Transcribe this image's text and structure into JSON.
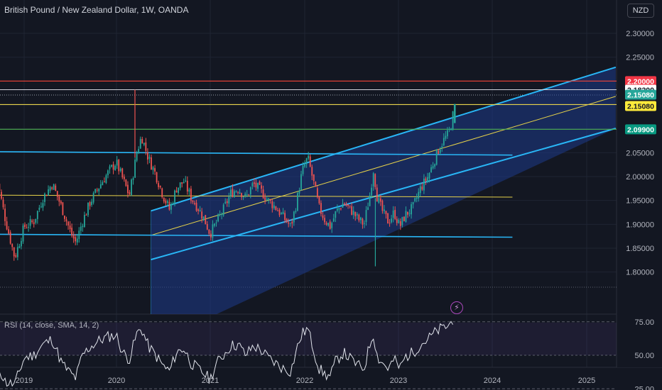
{
  "header": {
    "title": "British Pound / New Zealand Dollar, 1W, OANDA",
    "currency": "NZD"
  },
  "rsi": {
    "label": "RSI (14, close, SMA, 14, 2)",
    "ticks": [
      "75.00",
      "50.00",
      "25.00"
    ]
  },
  "colors": {
    "background": "#131722",
    "up": "#26a69a",
    "down": "#ef5350",
    "channel_line": "#29b6f6",
    "channel_fill": "#1e3a8a",
    "mid_line": "#e6d24a",
    "resistance": "#f44336",
    "green_level": "#4caf50",
    "rsi_line": "#e0e3eb"
  },
  "chart_data": {
    "type": "candlestick",
    "title": "British Pound / New Zealand Dollar, 1W, OANDA",
    "ylim": [
      1.78,
      2.32
    ],
    "y_ticks": [
      "2.30000",
      "2.25000",
      "2.20000",
      "2.15000",
      "2.10000",
      "2.05000",
      "2.00000",
      "1.95000",
      "1.90000",
      "1.85000",
      "1.80000"
    ],
    "x_ticks": [
      "2019",
      "2020",
      "2021",
      "2022",
      "2023",
      "2024",
      "2025"
    ],
    "horizontal_levels": [
      {
        "price": 2.2,
        "label": "2.20000",
        "style": "red"
      },
      {
        "price": 2.182,
        "label": "2.18200",
        "style": "white"
      },
      {
        "price": 2.1508,
        "label": "2.15080",
        "style": "yellow"
      },
      {
        "price": 2.099,
        "label": "2.09900",
        "style": "green"
      }
    ],
    "current_price_label": "2.15080",
    "range_lines": [
      {
        "from": [
          2018.7,
          2.052
        ],
        "to": [
          2024.2,
          2.045
        ]
      },
      {
        "from": [
          2018.7,
          1.961
        ],
        "to": [
          2024.2,
          1.957
        ]
      },
      {
        "from": [
          2018.7,
          1.879
        ],
        "to": [
          2024.2,
          1.873
        ]
      }
    ],
    "channel": {
      "x_start": 2020.35,
      "x_end": 2025.3,
      "upper": [
        1.928,
        2.229
      ],
      "middle": [
        1.877,
        2.168
      ],
      "lower": [
        1.826,
        2.101
      ]
    },
    "price_series": [
      [
        2018.7,
        2.005
      ],
      [
        2018.8,
        1.91
      ],
      [
        2018.9,
        1.83
      ],
      [
        2019.0,
        1.895
      ],
      [
        2019.1,
        1.905
      ],
      [
        2019.2,
        1.955
      ],
      [
        2019.3,
        1.985
      ],
      [
        2019.4,
        1.935
      ],
      [
        2019.5,
        1.88
      ],
      [
        2019.55,
        1.862
      ],
      [
        2019.62,
        1.905
      ],
      [
        2019.7,
        1.945
      ],
      [
        2019.8,
        1.98
      ],
      [
        2019.9,
        2.01
      ],
      [
        2019.98,
        2.03
      ],
      [
        2020.05,
        1.995
      ],
      [
        2020.12,
        1.96
      ],
      [
        2020.2,
        2.05
      ],
      [
        2020.25,
        2.085
      ],
      [
        2020.32,
        2.04
      ],
      [
        2020.4,
        2.005
      ],
      [
        2020.48,
        1.96
      ],
      [
        2020.55,
        1.93
      ],
      [
        2020.62,
        1.975
      ],
      [
        2020.7,
        1.99
      ],
      [
        2020.78,
        1.955
      ],
      [
        2020.85,
        1.935
      ],
      [
        2020.92,
        1.91
      ],
      [
        2020.98,
        1.88
      ],
      [
        2021.05,
        1.905
      ],
      [
        2021.12,
        1.93
      ],
      [
        2021.2,
        1.965
      ],
      [
        2021.28,
        1.975
      ],
      [
        2021.36,
        1.955
      ],
      [
        2021.44,
        1.985
      ],
      [
        2021.52,
        1.97
      ],
      [
        2021.6,
        1.95
      ],
      [
        2021.68,
        1.935
      ],
      [
        2021.76,
        1.915
      ],
      [
        2021.84,
        1.895
      ],
      [
        2021.9,
        1.945
      ],
      [
        2021.96,
        2.01
      ],
      [
        2022.02,
        2.04
      ],
      [
        2022.08,
        1.99
      ],
      [
        2022.14,
        1.935
      ],
      [
        2022.2,
        1.91
      ],
      [
        2022.26,
        1.895
      ],
      [
        2022.32,
        1.925
      ],
      [
        2022.4,
        1.945
      ],
      [
        2022.48,
        1.93
      ],
      [
        2022.56,
        1.91
      ],
      [
        2022.62,
        1.9
      ],
      [
        2022.68,
        1.96
      ],
      [
        2022.72,
        2.015
      ],
      [
        2022.76,
        1.955
      ],
      [
        2022.82,
        1.925
      ],
      [
        2022.88,
        1.905
      ],
      [
        2022.94,
        1.925
      ],
      [
        2023.0,
        1.895
      ],
      [
        2023.06,
        1.92
      ],
      [
        2023.14,
        1.935
      ],
      [
        2023.22,
        1.975
      ],
      [
        2023.3,
        2.0
      ],
      [
        2023.36,
        2.03
      ],
      [
        2023.42,
        2.06
      ],
      [
        2023.48,
        2.08
      ],
      [
        2023.52,
        2.09
      ],
      [
        2023.56,
        2.12
      ],
      [
        2023.58,
        2.15
      ]
    ],
    "wicks": [
      {
        "x": 2020.18,
        "high": 2.182,
        "low": 2.04
      },
      {
        "x": 2022.74,
        "high": 1.955,
        "low": 1.812
      }
    ],
    "rsi_series": [
      [
        2018.7,
        45
      ],
      [
        2018.8,
        30
      ],
      [
        2018.9,
        28
      ],
      [
        2019.0,
        48
      ],
      [
        2019.1,
        50
      ],
      [
        2019.2,
        58
      ],
      [
        2019.3,
        62
      ],
      [
        2019.4,
        44
      ],
      [
        2019.5,
        36
      ],
      [
        2019.55,
        33
      ],
      [
        2019.62,
        50
      ],
      [
        2019.7,
        56
      ],
      [
        2019.8,
        61
      ],
      [
        2019.9,
        64
      ],
      [
        2019.98,
        65
      ],
      [
        2020.05,
        52
      ],
      [
        2020.12,
        47
      ],
      [
        2020.2,
        66
      ],
      [
        2020.25,
        70
      ],
      [
        2020.32,
        57
      ],
      [
        2020.4,
        50
      ],
      [
        2020.48,
        42
      ],
      [
        2020.55,
        38
      ],
      [
        2020.62,
        52
      ],
      [
        2020.7,
        55
      ],
      [
        2020.78,
        44
      ],
      [
        2020.85,
        40
      ],
      [
        2020.92,
        36
      ],
      [
        2020.98,
        32
      ],
      [
        2021.05,
        44
      ],
      [
        2021.12,
        50
      ],
      [
        2021.2,
        57
      ],
      [
        2021.28,
        58
      ],
      [
        2021.36,
        50
      ],
      [
        2021.44,
        57
      ],
      [
        2021.52,
        54
      ],
      [
        2021.6,
        48
      ],
      [
        2021.68,
        44
      ],
      [
        2021.76,
        40
      ],
      [
        2021.84,
        38
      ],
      [
        2021.9,
        54
      ],
      [
        2021.96,
        66
      ],
      [
        2022.02,
        70
      ],
      [
        2022.08,
        55
      ],
      [
        2022.14,
        40
      ],
      [
        2022.2,
        36
      ],
      [
        2022.26,
        34
      ],
      [
        2022.32,
        46
      ],
      [
        2022.4,
        52
      ],
      [
        2022.48,
        47
      ],
      [
        2022.56,
        42
      ],
      [
        2022.62,
        40
      ],
      [
        2022.68,
        58
      ],
      [
        2022.72,
        66
      ],
      [
        2022.76,
        49
      ],
      [
        2022.82,
        44
      ],
      [
        2022.88,
        40
      ],
      [
        2022.94,
        47
      ],
      [
        2023.0,
        40
      ],
      [
        2023.06,
        49
      ],
      [
        2023.14,
        52
      ],
      [
        2023.22,
        58
      ],
      [
        2023.3,
        62
      ],
      [
        2023.36,
        66
      ],
      [
        2023.42,
        69
      ],
      [
        2023.48,
        71
      ],
      [
        2023.52,
        72
      ],
      [
        2023.56,
        76
      ],
      [
        2023.58,
        80
      ]
    ]
  }
}
